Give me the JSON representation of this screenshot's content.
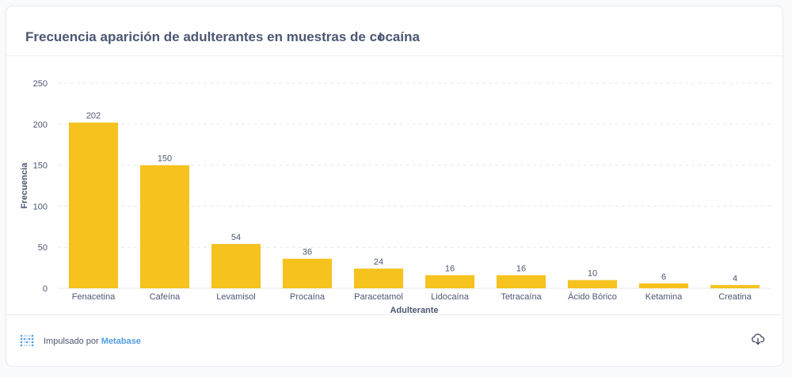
{
  "header": {
    "title": "Frecuencia aparición de adulterantes en muestras de cocaína",
    "info_icon": "info-icon"
  },
  "footer": {
    "powered_prefix": "Impulsado por",
    "brand": "Metabase",
    "logo_icon": "metabase-logo-icon",
    "download_icon": "cloud-download-icon"
  },
  "colors": {
    "bar": "#f5c21e",
    "axis_text": "#4c5773",
    "grid": "#e6e9ef",
    "brand": "#509ee3"
  },
  "chart_data": {
    "type": "bar",
    "categories": [
      "Fenacetina",
      "Cafeína",
      "Levamisol",
      "Procaína",
      "Paracetamol",
      "Lidocaína",
      "Tetracaína",
      "Ácido Bórico",
      "Ketamina",
      "Creatina"
    ],
    "values": [
      202,
      150,
      54,
      36,
      24,
      16,
      16,
      10,
      6,
      4
    ],
    "xlabel": "Adulterante",
    "ylabel": "Frecuencia",
    "ylim": [
      0,
      250
    ],
    "yticks": [
      0,
      50,
      100,
      150,
      200,
      250
    ],
    "grid": true,
    "data_labels": true
  }
}
